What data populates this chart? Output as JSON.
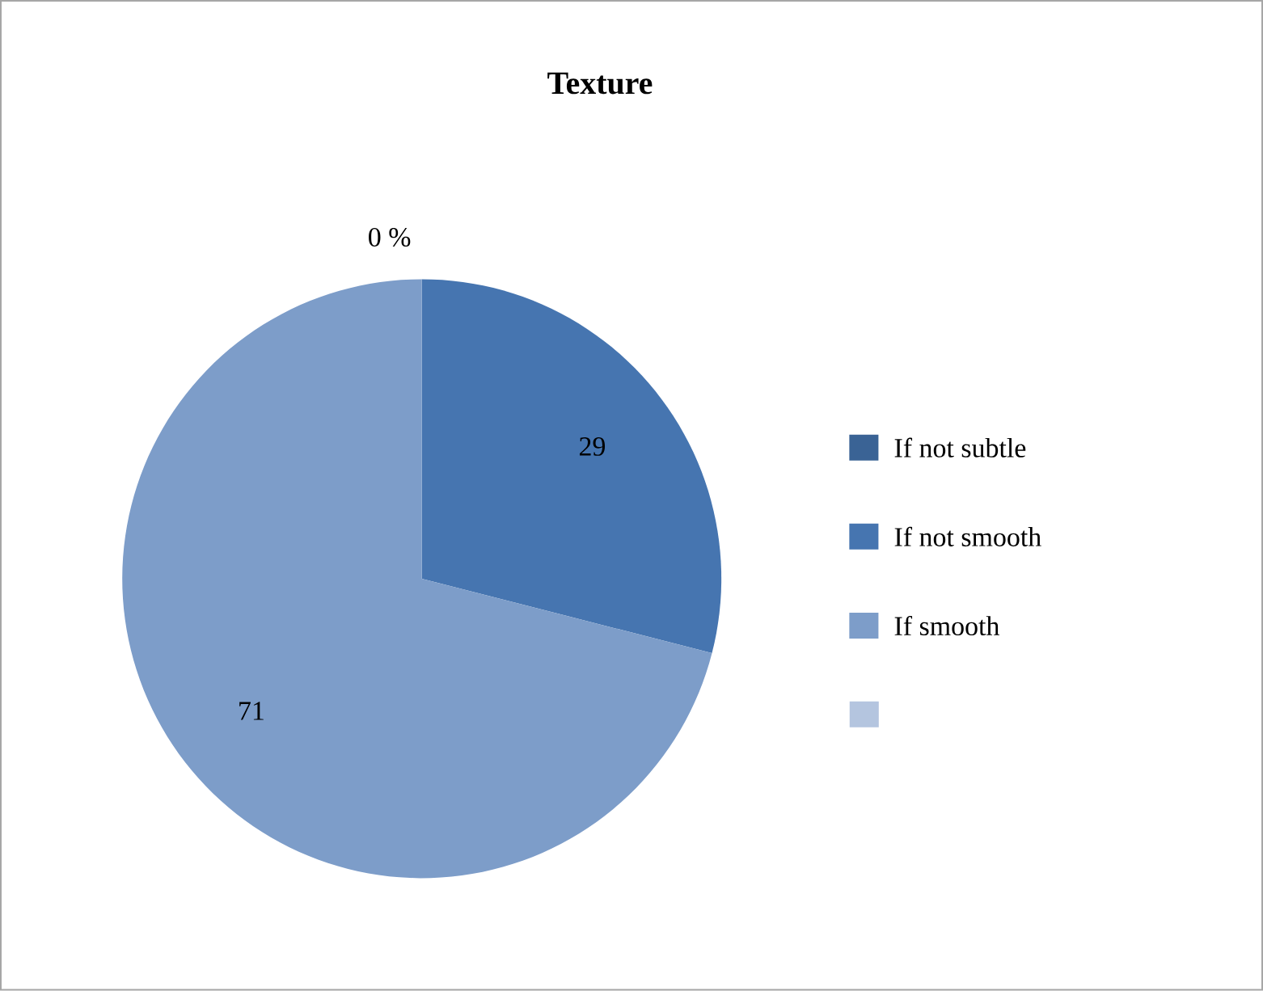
{
  "chart_data": {
    "type": "pie",
    "title": "Texture",
    "categories": [
      "If not subtle",
      "If not smooth",
      "If smooth",
      null
    ],
    "values": [
      0,
      29,
      71,
      0
    ],
    "colors": [
      "#3a6395",
      "#4675b0",
      "#7d9dc9",
      "#b4c5df"
    ],
    "value_labels": [
      "0 %",
      "29",
      "71",
      null
    ],
    "legend": "right"
  }
}
